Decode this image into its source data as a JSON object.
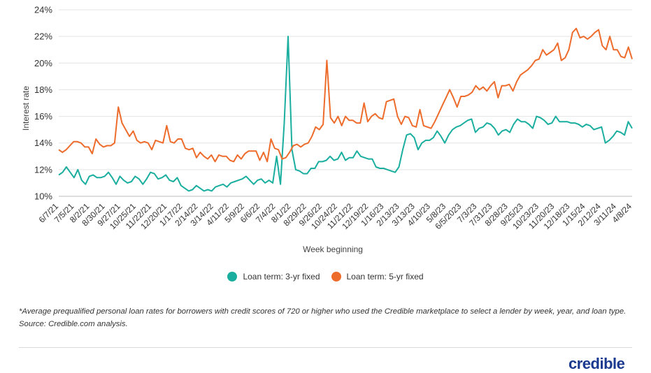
{
  "chart_data": {
    "type": "line",
    "title": "",
    "xlabel": "Week beginning",
    "ylabel": "Interest rate",
    "ylim": [
      10,
      24
    ],
    "y_ticks": [
      "10%",
      "12%",
      "14%",
      "16%",
      "18%",
      "20%",
      "22%",
      "24%"
    ],
    "y_tick_values": [
      10,
      12,
      14,
      16,
      18,
      20,
      22,
      24
    ],
    "grid": "horizontal",
    "legend_position": "bottom",
    "x_tick_labels": [
      "6/7/21",
      "7/5/21",
      "8/2/21",
      "8/30/21",
      "9/27/21",
      "10/25/21",
      "11/22/21",
      "12/20/21",
      "1/17/22",
      "2/14/22",
      "3/14/22",
      "4/11/22",
      "5/9/22",
      "6/6/22",
      "7/4/22",
      "8/1/22",
      "8/29/22",
      "9/26/22",
      "10/24/22",
      "11/21/22",
      "12/19/22",
      "1/16/23",
      "2/13/23",
      "3/13/23",
      "4/10/23",
      "5/8/23",
      "6/5/2023",
      "7/3/23",
      "7/31/23",
      "8/28/23",
      "9/25/23",
      "10/23/23",
      "11/20/23",
      "12/18/23",
      "1/15/24",
      "2/12/24",
      "3/11/24",
      "4/8/24"
    ],
    "series": [
      {
        "name": "Loan term: 3-yr fixed",
        "color": "#1aae9f",
        "values": [
          11.6,
          11.8,
          12.2,
          11.8,
          11.4,
          12.0,
          11.2,
          10.9,
          11.5,
          11.6,
          11.4,
          11.4,
          11.5,
          11.8,
          11.4,
          10.9,
          11.5,
          11.2,
          11.0,
          11.1,
          11.5,
          11.3,
          10.9,
          11.3,
          11.8,
          11.7,
          11.3,
          11.4,
          11.6,
          11.2,
          11.1,
          11.4,
          10.8,
          10.6,
          10.4,
          10.5,
          10.8,
          10.6,
          10.4,
          10.5,
          10.4,
          10.7,
          10.8,
          10.9,
          10.7,
          11.0,
          11.1,
          11.2,
          11.3,
          11.5,
          11.2,
          10.9,
          11.2,
          11.3,
          11.0,
          11.2,
          11.0,
          13.0,
          10.9,
          15.5,
          22.0,
          13.5,
          12.0,
          11.9,
          11.7,
          11.7,
          12.1,
          12.1,
          12.6,
          12.6,
          12.7,
          13.0,
          12.7,
          12.8,
          13.3,
          12.7,
          12.9,
          12.9,
          13.4,
          13.0,
          12.9,
          12.8,
          12.8,
          12.2,
          12.1,
          12.1,
          12.0,
          11.9,
          11.8,
          12.2,
          13.5,
          14.6,
          14.7,
          14.4,
          13.5,
          14.0,
          14.2,
          14.2,
          14.4,
          14.9,
          14.5,
          14.0,
          14.6,
          15.0,
          15.2,
          15.3,
          15.5,
          15.7,
          15.8,
          14.8,
          15.1,
          15.2,
          15.5,
          15.4,
          15.1,
          14.6,
          14.9,
          15.0,
          14.8,
          15.4,
          15.8,
          15.6,
          15.6,
          15.4,
          15.1,
          16.0,
          15.9,
          15.7,
          15.4,
          15.5,
          16.0,
          15.6,
          15.6,
          15.6,
          15.5,
          15.5,
          15.4,
          15.2,
          15.4,
          15.3,
          15.0,
          15.1,
          15.2,
          14.0,
          14.2,
          14.5,
          14.9,
          14.8,
          14.6,
          15.6,
          15.1
        ]
      },
      {
        "name": "Loan term: 5-yr fixed",
        "color": "#ee6c2b",
        "values": [
          13.5,
          13.3,
          13.5,
          13.8,
          14.1,
          14.1,
          14.0,
          13.7,
          13.7,
          13.2,
          14.3,
          13.9,
          13.7,
          13.8,
          13.8,
          14.0,
          16.7,
          15.5,
          15.0,
          14.5,
          14.9,
          14.2,
          14.0,
          14.1,
          14.0,
          13.5,
          14.2,
          14.1,
          14.0,
          15.3,
          14.1,
          14.0,
          14.3,
          14.3,
          13.6,
          13.5,
          13.6,
          12.9,
          13.3,
          13.0,
          12.8,
          13.1,
          12.6,
          13.1,
          13.0,
          13.0,
          12.7,
          12.6,
          13.1,
          12.8,
          13.2,
          13.4,
          13.4,
          13.4,
          12.7,
          13.3,
          12.6,
          14.3,
          13.6,
          13.5,
          12.8,
          12.9,
          13.3,
          13.8,
          13.9,
          13.7,
          13.9,
          14.0,
          14.5,
          15.2,
          15.0,
          15.4,
          20.2,
          15.9,
          15.5,
          16.0,
          15.3,
          16.0,
          15.7,
          15.7,
          15.5,
          15.5,
          17.0,
          15.6,
          16.0,
          16.2,
          15.9,
          15.8,
          17.1,
          17.2,
          17.3,
          16.0,
          15.4,
          16.0,
          15.9,
          15.3,
          15.2,
          16.5,
          15.3,
          15.2,
          15.1,
          15.6,
          16.2,
          16.8,
          17.4,
          18.0,
          17.4,
          16.7,
          17.5,
          17.5,
          17.6,
          17.8,
          18.3,
          18.0,
          18.2,
          17.9,
          18.3,
          18.6,
          17.4,
          18.3,
          18.3,
          18.4,
          17.9,
          18.6,
          19.1,
          19.3,
          19.5,
          19.8,
          20.2,
          20.3,
          21.0,
          20.6,
          20.8,
          21.0,
          21.5,
          20.2,
          20.4,
          21.0,
          22.3,
          22.6,
          21.9,
          22.0,
          21.8,
          22.0,
          22.3,
          22.5,
          21.3,
          21.0,
          22.0,
          21.0,
          21.0,
          20.5,
          20.4,
          21.2,
          20.3
        ]
      }
    ]
  },
  "footnote": "*Average prequalified personal loan rates for borrowers with credit scores of 720 or higher who used the Credible marketplace to select a lender by week, year, and loan type. Source: Credible.com analysis.",
  "logo_text": "credible"
}
